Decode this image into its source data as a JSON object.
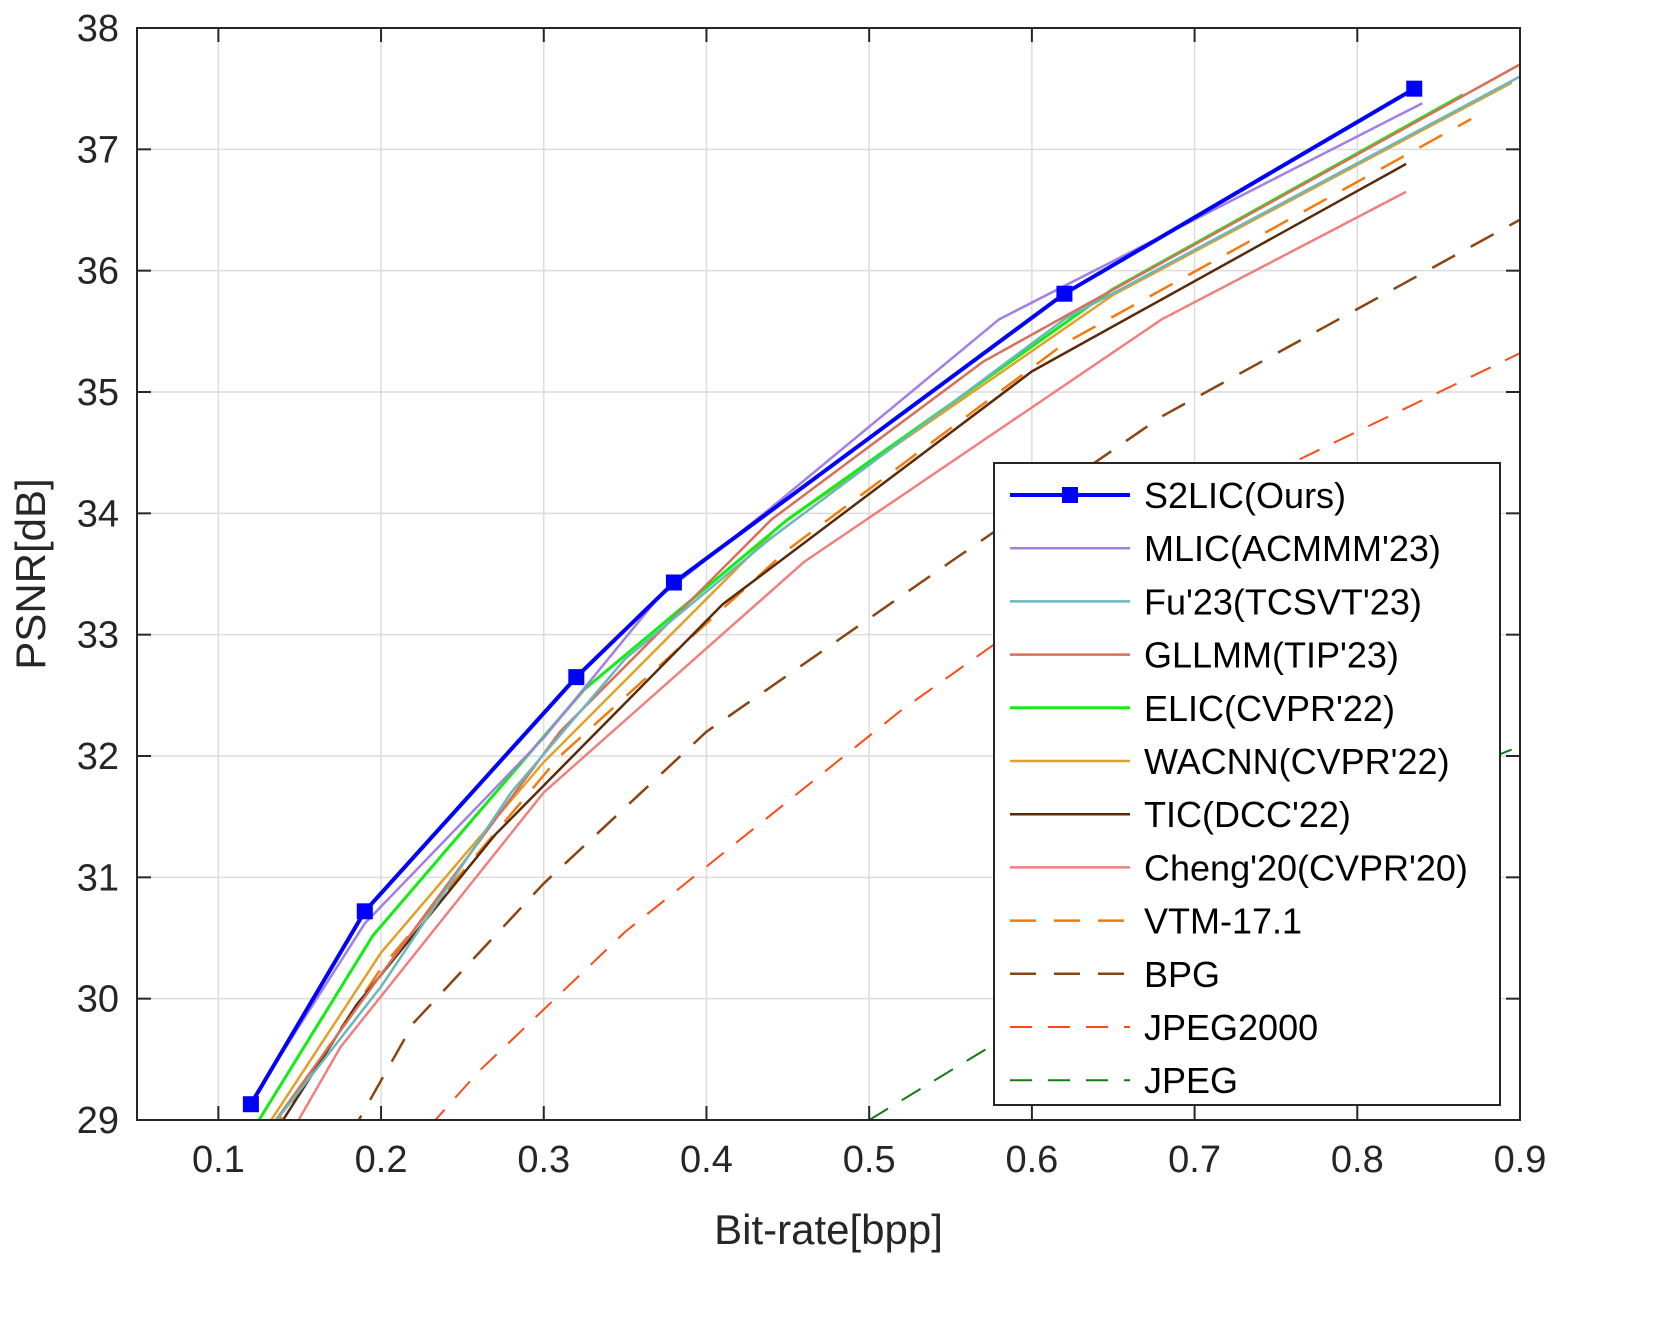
{
  "chart_data": {
    "type": "line",
    "xlabel": "Bit-rate[bpp]",
    "ylabel": "PSNR[dB]",
    "xlim": [
      0.05,
      0.9
    ],
    "ylim": [
      29,
      38
    ],
    "xticks": [
      0.1,
      0.2,
      0.3,
      0.4,
      0.5,
      0.6,
      0.7,
      0.8,
      0.9
    ],
    "yticks": [
      29,
      30,
      31,
      32,
      33,
      34,
      35,
      36,
      37,
      38
    ],
    "xtick_labels": [
      "0.1",
      "0.2",
      "0.3",
      "0.4",
      "0.5",
      "0.6",
      "0.7",
      "0.8",
      "0.9"
    ],
    "ytick_labels": [
      "29",
      "30",
      "31",
      "32",
      "33",
      "34",
      "35",
      "36",
      "37",
      "38"
    ],
    "grid": true,
    "legend_position": "bottom-right",
    "series": [
      {
        "name": "S2LIC(Ours)",
        "color": "#0000ff",
        "style": "solid",
        "width": 4,
        "marker": "square",
        "x": [
          0.12,
          0.19,
          0.32,
          0.38,
          0.62,
          0.835
        ],
        "y": [
          29.13,
          30.72,
          32.65,
          33.43,
          35.81,
          37.5
        ]
      },
      {
        "name": "MLIC(ACMMM'23)",
        "color": "#a27fe6",
        "style": "solid",
        "width": 2.5,
        "x": [
          0.12,
          0.19,
          0.3,
          0.37,
          0.44,
          0.58,
          0.84
        ],
        "y": [
          29.15,
          30.62,
          32.15,
          33.3,
          34.05,
          35.6,
          37.38
        ]
      },
      {
        "name": "Fu'23(TCSVT'23)",
        "color": "#6ab7bd",
        "style": "solid",
        "width": 2.5,
        "x": [
          0.13,
          0.2,
          0.28,
          0.35,
          0.44,
          0.62,
          0.9
        ],
        "y": [
          28.9,
          30.1,
          31.7,
          32.8,
          33.8,
          35.6,
          37.6
        ]
      },
      {
        "name": "GLLMM(TIP'23)",
        "color": "#d6705a",
        "style": "solid",
        "width": 2.5,
        "x": [
          0.13,
          0.2,
          0.31,
          0.44,
          0.57,
          0.9
        ],
        "y": [
          28.9,
          30.2,
          32.2,
          33.95,
          35.25,
          37.7
        ]
      },
      {
        "name": "ELIC(CVPR'22)",
        "color": "#11ee11",
        "style": "solid",
        "width": 3,
        "x": [
          0.125,
          0.195,
          0.325,
          0.45,
          0.65,
          0.865
        ],
        "y": [
          29.0,
          30.52,
          32.55,
          33.95,
          35.85,
          37.45
        ]
      },
      {
        "name": "WACNN(CVPR'22)",
        "color": "#e1a128",
        "style": "solid",
        "width": 2.5,
        "x": [
          0.13,
          0.2,
          0.3,
          0.445,
          0.65,
          0.895
        ],
        "y": [
          28.95,
          30.38,
          31.95,
          33.9,
          35.8,
          37.55
        ]
      },
      {
        "name": "TIC(DCC'22)",
        "color": "#5a2a0a",
        "style": "solid",
        "width": 2.5,
        "x": [
          0.135,
          0.185,
          0.27,
          0.41,
          0.6,
          0.83
        ],
        "y": [
          28.9,
          29.95,
          31.35,
          33.25,
          35.17,
          36.88
        ]
      },
      {
        "name": "Cheng'20(CVPR'20)",
        "color": "#f08080",
        "style": "solid",
        "width": 2.5,
        "x": [
          0.145,
          0.175,
          0.3,
          0.46,
          0.68,
          0.83
        ],
        "y": [
          28.9,
          29.6,
          31.7,
          33.6,
          35.6,
          36.65
        ]
      },
      {
        "name": "VTM-17.1",
        "color": "#f47a0c",
        "style": "dashed",
        "width": 2.5,
        "x": [
          0.13,
          0.2,
          0.31,
          0.45,
          0.62,
          0.87
        ],
        "y": [
          28.85,
          30.25,
          32.0,
          33.7,
          35.4,
          37.25
        ]
      },
      {
        "name": "BPG",
        "color": "#8b4513",
        "style": "dashed",
        "width": 2.5,
        "x": [
          0.18,
          0.22,
          0.3,
          0.4,
          0.55,
          0.68,
          0.9
        ],
        "y": [
          28.85,
          29.8,
          30.95,
          32.2,
          33.6,
          34.8,
          36.42
        ]
      },
      {
        "name": "JPEG2000",
        "color": "#ff4a18",
        "style": "dashed",
        "width": 2,
        "x": [
          0.23,
          0.26,
          0.35,
          0.52,
          0.68,
          0.9
        ],
        "y": [
          28.95,
          29.4,
          30.55,
          32.38,
          33.9,
          35.32
        ]
      },
      {
        "name": "JPEG",
        "color": "#137b13",
        "style": "dashed",
        "width": 2,
        "x": [
          0.5,
          0.65,
          0.8,
          0.9
        ],
        "y": [
          29.0,
          30.22,
          31.55,
          32.08
        ]
      }
    ]
  }
}
